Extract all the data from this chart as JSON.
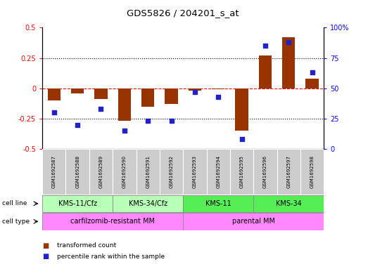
{
  "title": "GDS5826 / 204201_s_at",
  "samples": [
    "GSM1692587",
    "GSM1692588",
    "GSM1692589",
    "GSM1692590",
    "GSM1692591",
    "GSM1692592",
    "GSM1692593",
    "GSM1692594",
    "GSM1692595",
    "GSM1692596",
    "GSM1692597",
    "GSM1692598"
  ],
  "transformed_count": [
    -0.1,
    -0.04,
    -0.09,
    -0.27,
    -0.15,
    -0.13,
    -0.02,
    -0.01,
    -0.35,
    0.27,
    0.42,
    0.08
  ],
  "percentile_rank": [
    30,
    20,
    33,
    15,
    23,
    23,
    47,
    43,
    8,
    85,
    88,
    63
  ],
  "cell_line_groups": [
    {
      "label": "KMS-11/Cfz",
      "start": 0,
      "end": 3
    },
    {
      "label": "KMS-34/Cfz",
      "start": 3,
      "end": 6
    },
    {
      "label": "KMS-11",
      "start": 6,
      "end": 9
    },
    {
      "label": "KMS-34",
      "start": 9,
      "end": 12
    }
  ],
  "cell_line_colors": [
    "#b8ffb8",
    "#b8ffb8",
    "#55ee55",
    "#55ee55"
  ],
  "cell_type_groups": [
    {
      "label": "carfilzomib-resistant MM",
      "start": 0,
      "end": 6
    },
    {
      "label": "parental MM",
      "start": 6,
      "end": 12
    }
  ],
  "cell_type_color": "#ff88ff",
  "bar_color": "#993300",
  "dot_color": "#2222cc",
  "left_ylim": [
    -0.5,
    0.5
  ],
  "right_ylim": [
    0,
    100
  ],
  "left_yticks": [
    -0.5,
    -0.25,
    0.0,
    0.25,
    0.5
  ],
  "right_yticks": [
    0,
    25,
    50,
    75,
    100
  ],
  "left_yticklabels": [
    "-0.5",
    "-0.25",
    "0",
    "0.25",
    "0.5"
  ],
  "right_yticklabels": [
    "0",
    "25",
    "50",
    "75",
    "100%"
  ],
  "plot_bg": "#ffffff",
  "sample_bg": "#cccccc"
}
